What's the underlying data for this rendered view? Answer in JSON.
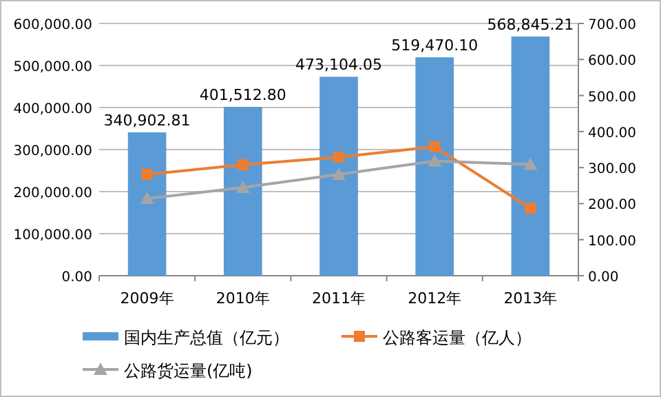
{
  "chart_data": {
    "type": "bar",
    "categories": [
      "2009年",
      "2010年",
      "2011年",
      "2012年",
      "2013年"
    ],
    "series": [
      {
        "name": "国内生产总值（亿元）",
        "color": "#5b9bd5",
        "values": [
          340902.81,
          401512.8,
          473104.05,
          519470.1,
          568845.21
        ],
        "value_labels": [
          "340,902.81",
          "401,512.80",
          "473,104.05",
          "519,470.10",
          "568,845.21"
        ]
      },
      {
        "name": "公路客运量（亿人）",
        "type": "line",
        "axis": "y2",
        "marker": "square",
        "color": "#ed7d31",
        "values": [
          281,
          308,
          329,
          358,
          187
        ]
      },
      {
        "name": "公路货运量(亿吨)",
        "type": "line",
        "axis": "y2",
        "marker": "triangle",
        "color": "#a5a5a5",
        "values": [
          214,
          245,
          281,
          318,
          309
        ]
      }
    ],
    "ylim": [
      0,
      600000
    ],
    "yticks": [
      {
        "value": 0,
        "label": "0.00"
      },
      {
        "value": 100000,
        "label": "100,000.00"
      },
      {
        "value": 200000,
        "label": "200,000.00"
      },
      {
        "value": 300000,
        "label": "300,000.00"
      },
      {
        "value": 400000,
        "label": "400,000.00"
      },
      {
        "value": 500000,
        "label": "500,000.00"
      },
      {
        "value": 600000,
        "label": "600,000.00"
      }
    ],
    "y2lim": [
      0,
      700
    ],
    "y2ticks": [
      {
        "value": 0,
        "label": "0.00"
      },
      {
        "value": 100,
        "label": "100.00"
      },
      {
        "value": 200,
        "label": "200.00"
      },
      {
        "value": 300,
        "label": "300.00"
      },
      {
        "value": 400,
        "label": "400.00"
      },
      {
        "value": 500,
        "label": "500.00"
      },
      {
        "value": 600,
        "label": "600.00"
      },
      {
        "value": 700,
        "label": "700.00"
      }
    ],
    "grid": "y",
    "legend": "bottom"
  }
}
